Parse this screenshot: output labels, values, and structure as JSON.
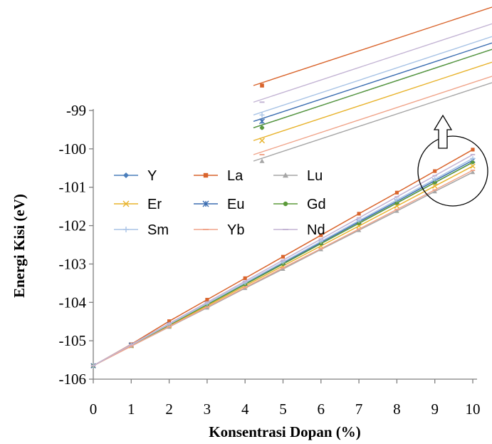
{
  "chart_data": {
    "type": "line",
    "title": "",
    "xlabel": "Konsentrasi Dopan (%)",
    "ylabel": "Energi Kisi (eV)",
    "x": [
      0,
      1,
      2,
      3,
      4,
      5,
      6,
      7,
      8,
      9,
      10
    ],
    "xlim": [
      0,
      10
    ],
    "ylim": [
      -106,
      -99
    ],
    "x_ticks": [
      "0",
      "1",
      "2",
      "3",
      "4",
      "5",
      "6",
      "7",
      "8",
      "9",
      "10"
    ],
    "y_ticks": [
      "-99",
      "-100",
      "-101",
      "-102",
      "-103",
      "-104",
      "-105",
      "-106"
    ],
    "grid": false,
    "legend_position": "upper-left inside plot, 3 columns",
    "series": [
      {
        "name": "Y",
        "color": "#4a7ebb",
        "marker": "diamond",
        "values": [
          -105.65,
          -105.12,
          -104.59,
          -104.06,
          -103.53,
          -103.0,
          -102.47,
          -101.94,
          -101.41,
          -100.88,
          -100.35
        ]
      },
      {
        "name": "La",
        "color": "#d9642c",
        "marker": "square",
        "values": [
          -105.65,
          -105.09,
          -104.49,
          -103.93,
          -103.37,
          -102.81,
          -102.25,
          -101.69,
          -101.14,
          -100.58,
          -100.02
        ]
      },
      {
        "name": "Lu",
        "color": "#a6a6a6",
        "marker": "triangle",
        "values": [
          -105.65,
          -105.14,
          -104.64,
          -104.14,
          -103.63,
          -103.13,
          -102.62,
          -102.12,
          -101.62,
          -101.11,
          -100.61
        ]
      },
      {
        "name": "Er",
        "color": "#e8b32c",
        "marker": "x",
        "values": [
          -105.65,
          -105.13,
          -104.61,
          -104.09,
          -103.57,
          -103.05,
          -102.53,
          -102.01,
          -101.49,
          -100.97,
          -100.45
        ]
      },
      {
        "name": "Eu",
        "color": "#3b6db0",
        "marker": "star",
        "values": [
          -105.65,
          -105.11,
          -104.58,
          -104.04,
          -103.51,
          -102.97,
          -102.44,
          -101.9,
          -101.37,
          -100.83,
          -100.3
        ]
      },
      {
        "name": "Gd",
        "color": "#5b9a3a",
        "marker": "circle",
        "values": [
          -105.65,
          -105.12,
          -104.59,
          -104.06,
          -103.53,
          -103.0,
          -102.47,
          -101.94,
          -101.41,
          -100.88,
          -100.35
        ]
      },
      {
        "name": "Sm",
        "color": "#a9c4e6",
        "marker": "plus",
        "values": [
          -105.65,
          -105.11,
          -104.57,
          -104.03,
          -103.49,
          -102.95,
          -102.41,
          -101.87,
          -101.33,
          -100.79,
          -100.25
        ]
      },
      {
        "name": "Yb",
        "color": "#f0a48a",
        "marker": "dash",
        "values": [
          -105.65,
          -105.14,
          -104.63,
          -104.12,
          -103.61,
          -103.1,
          -102.6,
          -102.09,
          -101.58,
          -101.07,
          -100.56
        ]
      },
      {
        "name": "Nd",
        "color": "#c3b4d4",
        "marker": "dash",
        "values": [
          -105.65,
          -105.1,
          -104.55,
          -104.0,
          -103.45,
          -102.9,
          -102.35,
          -101.8,
          -101.25,
          -100.7,
          -100.15
        ]
      }
    ],
    "annotations": [
      {
        "type": "zoom-inset",
        "description": "magnified view of line endpoints near x=10"
      },
      {
        "type": "circle",
        "description": "highlight around endpoints at x=9–10"
      },
      {
        "type": "arrow",
        "description": "hollow up arrow pointing from circle to inset"
      }
    ]
  }
}
